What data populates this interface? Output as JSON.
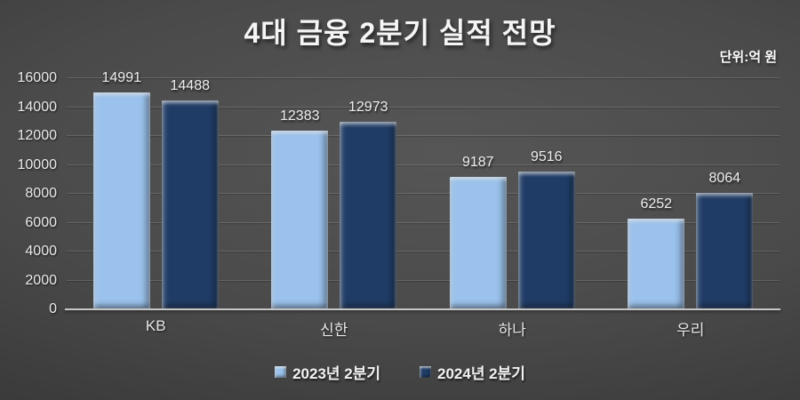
{
  "title": "4대 금융 2분기 실적 전망",
  "unit_label": "단위:억 원",
  "colors": {
    "background": "#4a4a4a",
    "axis_line": "#c6c6c6",
    "gridline": "#6a6a6a",
    "text": "#f5f5f5",
    "series_2023": "#9ac2ec",
    "series_2024": "#1f3c66"
  },
  "chart_data": {
    "type": "bar",
    "title": "4대 금융 2분기 실적 전망",
    "unit": "단위:억 원",
    "categories": [
      "KB",
      "신한",
      "하나",
      "우리"
    ],
    "series": [
      {
        "name": "2023년 2분기",
        "color": "#9ac2ec",
        "values": [
          14991,
          12383,
          9187,
          6252
        ]
      },
      {
        "name": "2024년 2분기",
        "color": "#1f3c66",
        "values": [
          14488,
          12973,
          9516,
          8064
        ]
      }
    ],
    "xlabel": "",
    "ylabel": "",
    "ylim": [
      0,
      16000
    ],
    "ytick_step": 2000,
    "yticks": [
      0,
      2000,
      4000,
      6000,
      8000,
      10000,
      12000,
      14000,
      16000
    ],
    "grid": true,
    "legend_position": "bottom"
  }
}
